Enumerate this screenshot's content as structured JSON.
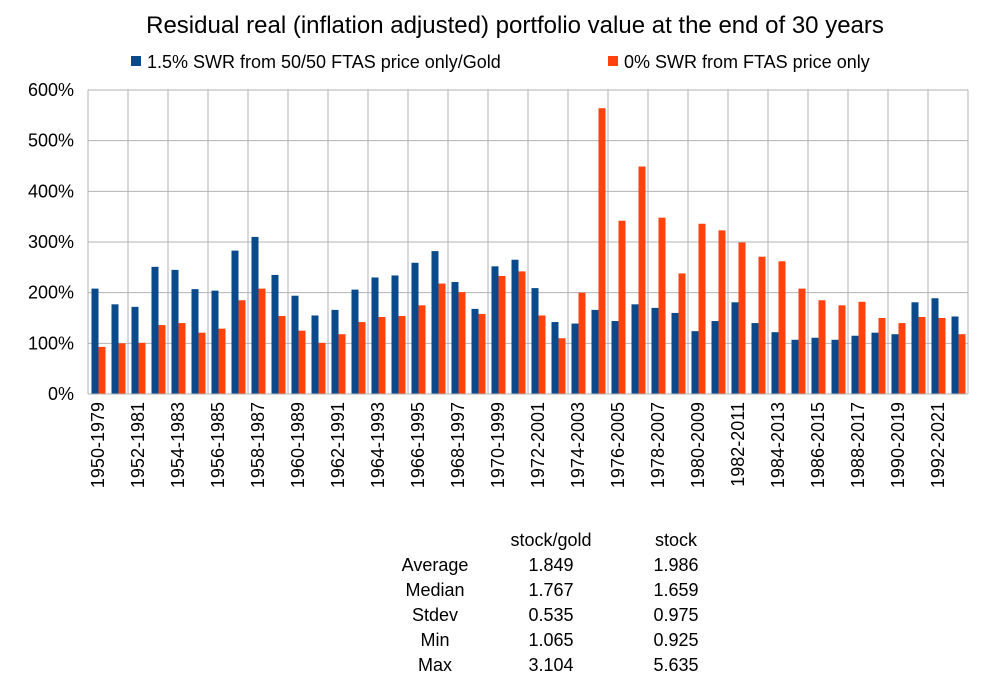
{
  "chart_data": {
    "type": "bar",
    "title": "Residual real (inflation adjusted) portfolio value at the end of 30 years",
    "xlabel": "",
    "ylabel": "",
    "ylim": [
      0,
      600
    ],
    "y_ticks": [
      0,
      100,
      200,
      300,
      400,
      500,
      600
    ],
    "y_tick_labels": [
      "0%",
      "100%",
      "200%",
      "300%",
      "400%",
      "500%",
      "600%"
    ],
    "grid": true,
    "legend_position": "top",
    "categories": [
      "1950-1979",
      "1951-1980",
      "1952-1981",
      "1953-1982",
      "1954-1983",
      "1955-1984",
      "1956-1985",
      "1957-1986",
      "1958-1987",
      "1959-1988",
      "1960-1989",
      "1961-1990",
      "1962-1991",
      "1963-1992",
      "1964-1993",
      "1965-1994",
      "1966-1995",
      "1967-1996",
      "1968-1997",
      "1969-1998",
      "1970-1999",
      "1971-2000",
      "1972-2001",
      "1973-2002",
      "1974-2003",
      "1975-2004",
      "1976-2005",
      "1977-2006",
      "1978-2007",
      "1979-2008",
      "1980-2009",
      "1981-2010",
      "1982-2011",
      "1983-2012",
      "1984-2013",
      "1985-2014",
      "1986-2015",
      "1987-2016",
      "1988-2017",
      "1989-2018",
      "1990-2019",
      "1991-2020",
      "1992-2021",
      "1993-2022"
    ],
    "x_tick_labels_shown": [
      "1950-1979",
      "1952-1981",
      "1954-1983",
      "1956-1985",
      "1958-1987",
      "1960-1989",
      "1962-1991",
      "1964-1993",
      "1966-1995",
      "1968-1997",
      "1970-1999",
      "1972-2001",
      "1974-2003",
      "1976-2005",
      "1978-2007",
      "1980-2009",
      "1982-2011",
      "1984-2013",
      "1986-2015",
      "1988-2017",
      "1990-2019",
      "1992-2021"
    ],
    "series": [
      {
        "name": "1.5% SWR from 50/50 FTAS price only/Gold",
        "color": "#0a4a8a",
        "values": [
          208,
          177,
          172,
          251,
          245,
          207,
          204,
          283,
          310,
          235,
          194,
          155,
          166,
          206,
          230,
          234,
          259,
          282,
          221,
          168,
          252,
          265,
          209,
          142,
          139,
          166,
          144,
          177,
          170,
          160,
          124,
          144,
          181,
          140,
          122,
          107,
          111,
          107,
          115,
          121,
          118,
          181,
          189,
          153
        ]
      },
      {
        "name": "0% SWR from FTAS price only",
        "color": "#ff420e",
        "values": [
          93,
          100,
          101,
          136,
          140,
          121,
          129,
          185,
          208,
          154,
          125,
          101,
          118,
          142,
          152,
          154,
          175,
          218,
          201,
          158,
          233,
          242,
          155,
          110,
          200,
          564,
          342,
          449,
          348,
          238,
          336,
          323,
          299,
          271,
          262,
          208,
          185,
          175,
          182,
          150,
          140,
          152,
          150,
          118
        ]
      }
    ]
  },
  "stats_table": {
    "col_stock_gold": "stock/gold",
    "col_stock": "stock",
    "rows": [
      {
        "label": "Average",
        "stock_gold": "1.849",
        "stock": "1.986"
      },
      {
        "label": "Median",
        "stock_gold": "1.767",
        "stock": "1.659"
      },
      {
        "label": "Stdev",
        "stock_gold": "0.535",
        "stock": "0.975"
      },
      {
        "label": "Min",
        "stock_gold": "1.065",
        "stock": "0.925"
      },
      {
        "label": "Max",
        "stock_gold": "3.104",
        "stock": "5.635"
      }
    ]
  }
}
